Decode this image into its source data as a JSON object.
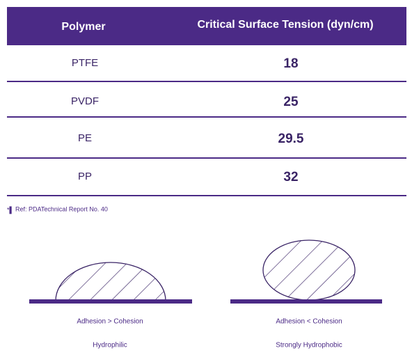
{
  "table": {
    "header": [
      "Polymer",
      "Critical Surface Tension (dyn/cm)"
    ],
    "rows": [
      [
        "PTFE",
        18
      ],
      [
        "PVDF",
        25
      ],
      [
        "PE",
        29.5
      ],
      [
        "PP",
        32
      ]
    ]
  },
  "footnote": "Ref: PDATechnical Report No. 40",
  "diagrams": [
    {
      "caption": "Adhesion > Cohesion",
      "label": "Hydrophilic"
    },
    {
      "caption": "Adhesion < Cohesion",
      "label": "Strongly Hydrophobic"
    }
  ]
}
